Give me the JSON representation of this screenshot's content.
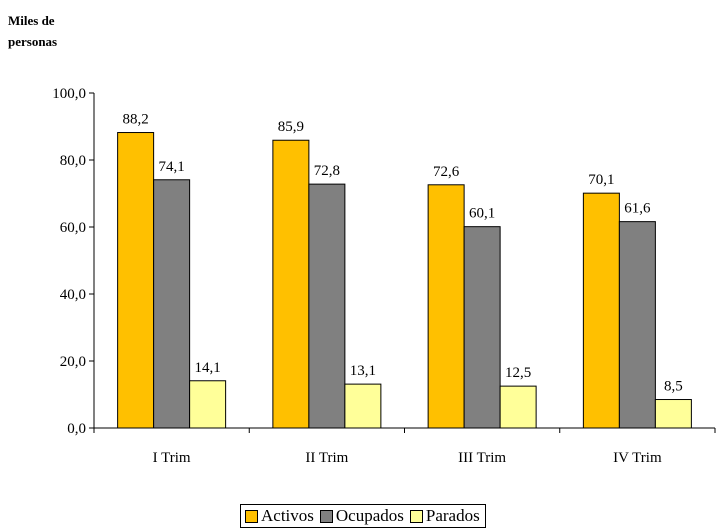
{
  "chart_data": {
    "type": "bar",
    "ylabel": [
      "Miles de",
      "personas"
    ],
    "categories": [
      "I Trim",
      "II Trim",
      "III Trim",
      "IV Trim"
    ],
    "series": [
      {
        "name": "Activos",
        "values": [
          88.2,
          85.9,
          72.6,
          70.1
        ],
        "labels": [
          "88,2",
          "85,9",
          "72,6",
          "70,1"
        ],
        "color": "#FFC000"
      },
      {
        "name": "Ocupados",
        "values": [
          74.1,
          72.8,
          60.1,
          61.6
        ],
        "labels": [
          "74,1",
          "72,8",
          "60,1",
          "61,6"
        ],
        "color": "#808080"
      },
      {
        "name": "Parados",
        "values": [
          14.1,
          13.1,
          12.5,
          8.5
        ],
        "labels": [
          "14,1",
          "13,1",
          "12,5",
          "8,5"
        ],
        "color": "#FFFF99"
      }
    ],
    "ylim": [
      0,
      100
    ],
    "yticks": [
      "0,0",
      "20,0",
      "40,0",
      "60,0",
      "80,0",
      "100,0"
    ],
    "grid": false,
    "legend": "bottom"
  }
}
